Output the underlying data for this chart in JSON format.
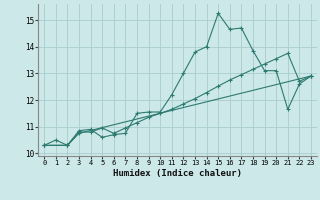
{
  "xlabel": "Humidex (Indice chaleur)",
  "bg_color": "#cce8e8",
  "grid_color": "#aacccc",
  "line_color": "#2d7a70",
  "xlim": [
    -0.5,
    23.5
  ],
  "ylim": [
    9.9,
    15.6
  ],
  "xticks": [
    0,
    1,
    2,
    3,
    4,
    5,
    6,
    7,
    8,
    9,
    10,
    11,
    12,
    13,
    14,
    15,
    16,
    17,
    18,
    19,
    20,
    21,
    22,
    23
  ],
  "yticks": [
    10,
    11,
    12,
    13,
    14,
    15
  ],
  "line1_x": [
    0,
    1,
    2,
    3,
    4,
    5,
    6,
    7,
    8,
    9,
    10,
    11,
    12,
    13,
    14,
    15,
    16,
    17,
    18,
    19,
    20,
    21,
    22,
    23
  ],
  "line1_y": [
    10.3,
    10.5,
    10.3,
    10.85,
    10.9,
    10.6,
    10.7,
    10.75,
    11.5,
    11.55,
    11.55,
    12.2,
    13.0,
    13.8,
    14.0,
    15.25,
    14.65,
    14.7,
    13.85,
    13.1,
    13.1,
    11.65,
    12.6,
    12.9
  ],
  "line2_x": [
    0,
    2,
    3,
    4,
    5,
    6,
    7,
    8,
    9,
    10,
    11,
    12,
    13,
    14,
    15,
    16,
    17,
    18,
    19,
    20,
    21,
    22,
    23
  ],
  "line2_y": [
    10.3,
    10.3,
    10.8,
    10.8,
    10.95,
    10.75,
    10.95,
    11.15,
    11.35,
    11.5,
    11.65,
    11.85,
    12.05,
    12.28,
    12.52,
    12.75,
    12.95,
    13.15,
    13.35,
    13.55,
    13.75,
    12.7,
    12.9
  ],
  "line3_x": [
    0,
    2,
    3,
    23
  ],
  "line3_y": [
    10.3,
    10.3,
    10.75,
    12.9
  ]
}
